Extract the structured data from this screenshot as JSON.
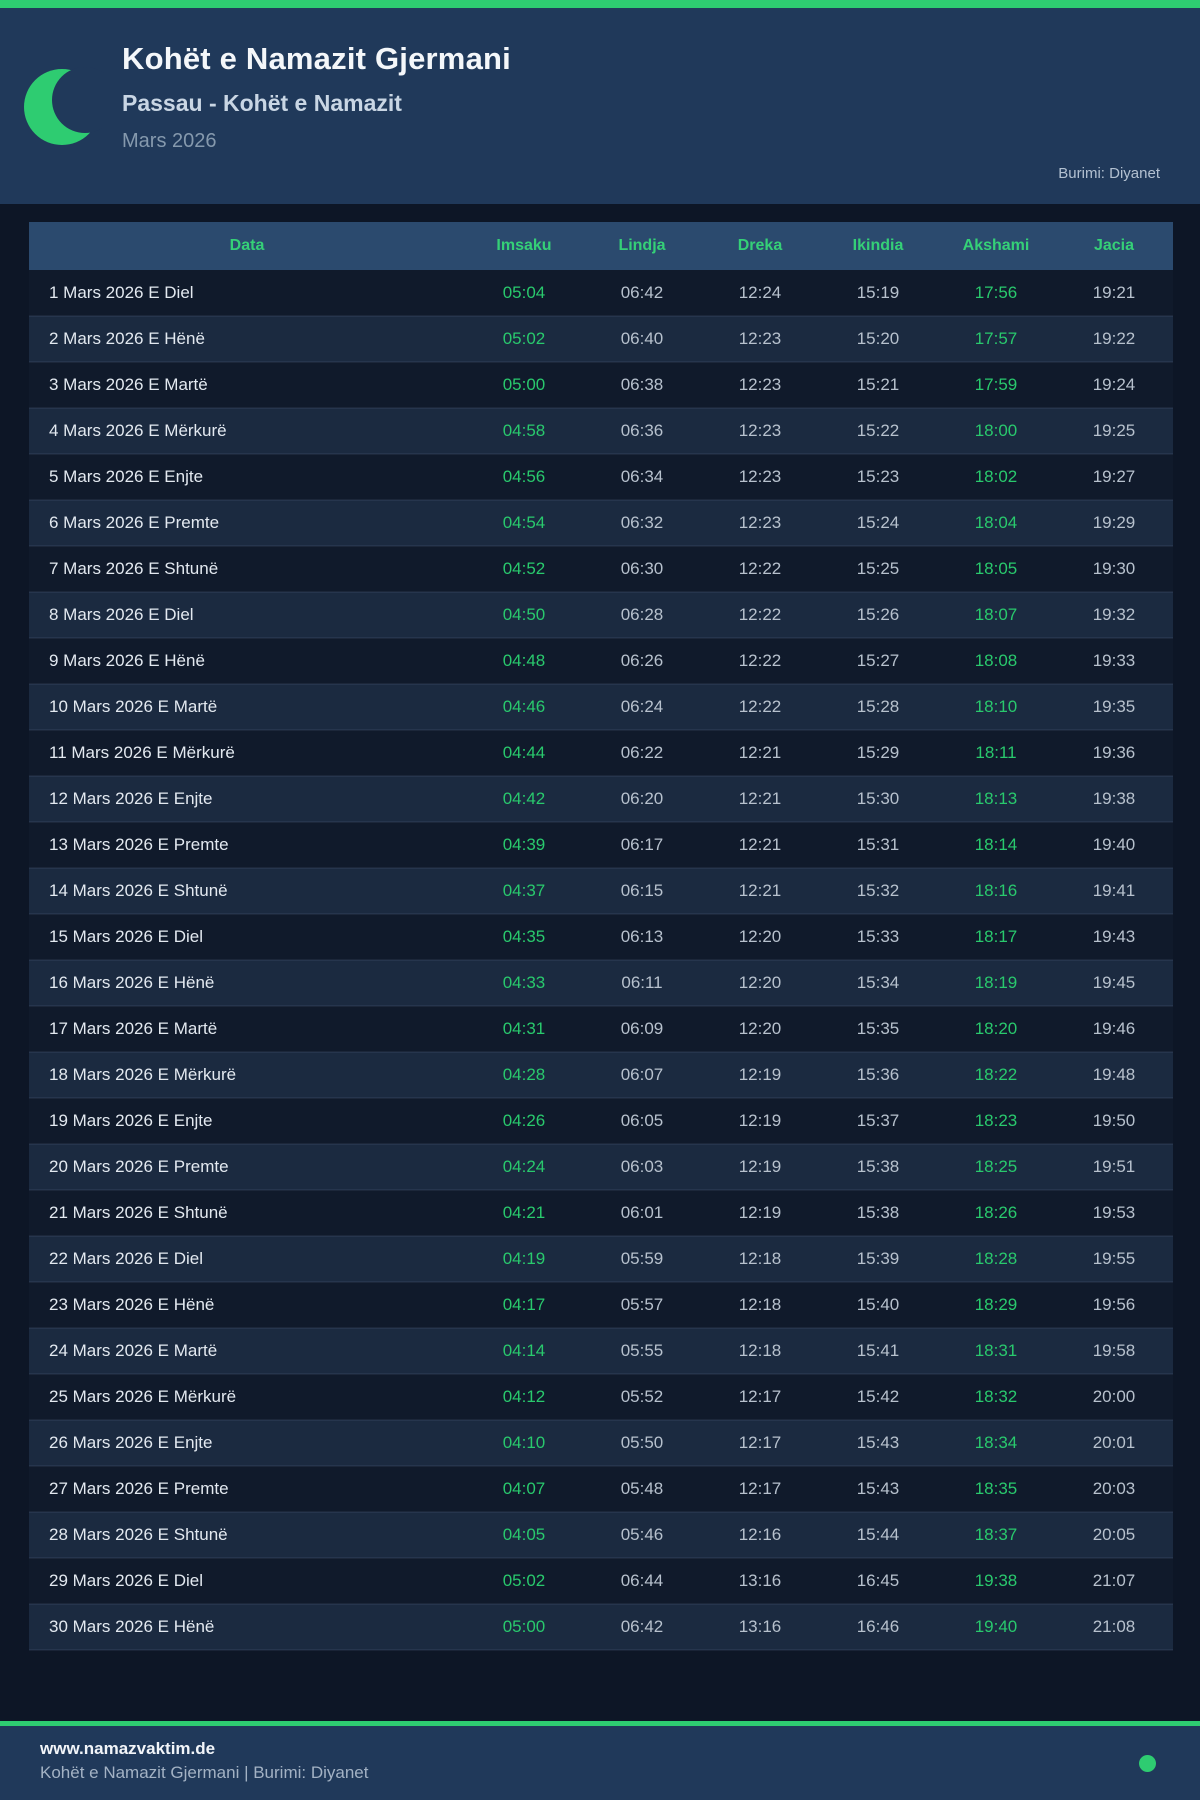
{
  "colors": {
    "accent_green": "#2ecc71",
    "header_bg": "#20395a",
    "page_bg": "#0d1626"
  },
  "header": {
    "title": "Kohët e Namazit Gjermani",
    "subtitle": "Passau - Kohët e Namazit",
    "period": "Mars 2026",
    "source": "Burimi: Diyanet",
    "icon": "crescent-moon-icon"
  },
  "table": {
    "columns": [
      "Data",
      "Imsaku",
      "Lindja",
      "Dreka",
      "Ikindia",
      "Akshami",
      "Jacia"
    ],
    "rows": [
      [
        "1 Mars 2026 E Diel",
        "05:04",
        "06:42",
        "12:24",
        "15:19",
        "17:56",
        "19:21"
      ],
      [
        "2 Mars 2026 E Hënë",
        "05:02",
        "06:40",
        "12:23",
        "15:20",
        "17:57",
        "19:22"
      ],
      [
        "3 Mars 2026 E Martë",
        "05:00",
        "06:38",
        "12:23",
        "15:21",
        "17:59",
        "19:24"
      ],
      [
        "4 Mars 2026 E Mërkurë",
        "04:58",
        "06:36",
        "12:23",
        "15:22",
        "18:00",
        "19:25"
      ],
      [
        "5 Mars 2026 E Enjte",
        "04:56",
        "06:34",
        "12:23",
        "15:23",
        "18:02",
        "19:27"
      ],
      [
        "6 Mars 2026 E Premte",
        "04:54",
        "06:32",
        "12:23",
        "15:24",
        "18:04",
        "19:29"
      ],
      [
        "7 Mars 2026 E Shtunë",
        "04:52",
        "06:30",
        "12:22",
        "15:25",
        "18:05",
        "19:30"
      ],
      [
        "8 Mars 2026 E Diel",
        "04:50",
        "06:28",
        "12:22",
        "15:26",
        "18:07",
        "19:32"
      ],
      [
        "9 Mars 2026 E Hënë",
        "04:48",
        "06:26",
        "12:22",
        "15:27",
        "18:08",
        "19:33"
      ],
      [
        "10 Mars 2026 E Martë",
        "04:46",
        "06:24",
        "12:22",
        "15:28",
        "18:10",
        "19:35"
      ],
      [
        "11 Mars 2026 E Mërkurë",
        "04:44",
        "06:22",
        "12:21",
        "15:29",
        "18:11",
        "19:36"
      ],
      [
        "12 Mars 2026 E Enjte",
        "04:42",
        "06:20",
        "12:21",
        "15:30",
        "18:13",
        "19:38"
      ],
      [
        "13 Mars 2026 E Premte",
        "04:39",
        "06:17",
        "12:21",
        "15:31",
        "18:14",
        "19:40"
      ],
      [
        "14 Mars 2026 E Shtunë",
        "04:37",
        "06:15",
        "12:21",
        "15:32",
        "18:16",
        "19:41"
      ],
      [
        "15 Mars 2026 E Diel",
        "04:35",
        "06:13",
        "12:20",
        "15:33",
        "18:17",
        "19:43"
      ],
      [
        "16 Mars 2026 E Hënë",
        "04:33",
        "06:11",
        "12:20",
        "15:34",
        "18:19",
        "19:45"
      ],
      [
        "17 Mars 2026 E Martë",
        "04:31",
        "06:09",
        "12:20",
        "15:35",
        "18:20",
        "19:46"
      ],
      [
        "18 Mars 2026 E Mërkurë",
        "04:28",
        "06:07",
        "12:19",
        "15:36",
        "18:22",
        "19:48"
      ],
      [
        "19 Mars 2026 E Enjte",
        "04:26",
        "06:05",
        "12:19",
        "15:37",
        "18:23",
        "19:50"
      ],
      [
        "20 Mars 2026 E Premte",
        "04:24",
        "06:03",
        "12:19",
        "15:38",
        "18:25",
        "19:51"
      ],
      [
        "21 Mars 2026 E Shtunë",
        "04:21",
        "06:01",
        "12:19",
        "15:38",
        "18:26",
        "19:53"
      ],
      [
        "22 Mars 2026 E Diel",
        "04:19",
        "05:59",
        "12:18",
        "15:39",
        "18:28",
        "19:55"
      ],
      [
        "23 Mars 2026 E Hënë",
        "04:17",
        "05:57",
        "12:18",
        "15:40",
        "18:29",
        "19:56"
      ],
      [
        "24 Mars 2026 E Martë",
        "04:14",
        "05:55",
        "12:18",
        "15:41",
        "18:31",
        "19:58"
      ],
      [
        "25 Mars 2026 E Mërkurë",
        "04:12",
        "05:52",
        "12:17",
        "15:42",
        "18:32",
        "20:00"
      ],
      [
        "26 Mars 2026 E Enjte",
        "04:10",
        "05:50",
        "12:17",
        "15:43",
        "18:34",
        "20:01"
      ],
      [
        "27 Mars 2026 E Premte",
        "04:07",
        "05:48",
        "12:17",
        "15:43",
        "18:35",
        "20:03"
      ],
      [
        "28 Mars 2026 E Shtunë",
        "04:05",
        "05:46",
        "12:16",
        "15:44",
        "18:37",
        "20:05"
      ],
      [
        "29 Mars 2026 E Diel",
        "05:02",
        "06:44",
        "13:16",
        "16:45",
        "19:38",
        "21:07"
      ],
      [
        "30 Mars 2026 E Hënë",
        "05:00",
        "06:42",
        "13:16",
        "16:46",
        "19:40",
        "21:08"
      ]
    ]
  },
  "footer": {
    "website": "www.namazvaktim.de",
    "caption": "Kohët e Namazit Gjermani | Burimi: Diyanet",
    "icon": "green-dot-icon"
  }
}
